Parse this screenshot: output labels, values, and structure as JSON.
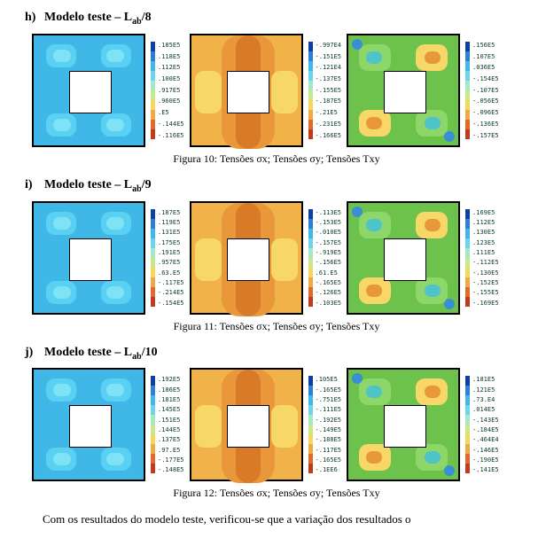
{
  "palette": {
    "lb_cyan": "#3fb8e8",
    "cyan2": "#5ad1f2",
    "cyan3": "#7fe2f5",
    "orange_bg": "#f2b24a",
    "orange_mid": "#e8983a",
    "orange_deep": "#d87a28",
    "yellow": "#f7d768",
    "green_bg": "#6cc24a",
    "green_mid": "#8dd66a",
    "green_cyan": "#4fc4c8",
    "blue_corner": "#3a8ed6"
  },
  "legend_colors": [
    "#0e3fa3",
    "#2d7fd6",
    "#3fb8e8",
    "#6cd4ec",
    "#a4e8c8",
    "#c8e88a",
    "#f2d95a",
    "#f0a948",
    "#e06a2c",
    "#c23a1e"
  ],
  "sections": [
    {
      "letter": "h)",
      "title_pre": "Modelo teste – L",
      "title_sub": "ab",
      "title_post": "/8",
      "caption": "Figura 10: Tensões σx; Tensões σy; Tensões Txy",
      "legends": [
        [
          ".185E5",
          ".118E5",
          ".112E5",
          ".100E5",
          ".917E5",
          ".960E5",
          ".E5",
          "-.144E5",
          "-.116E5"
        ],
        [
          "-.997E4",
          "-.151E5",
          "-.121E4",
          "-.137E5",
          "-.155E5",
          "-.187E5",
          "-.21E5",
          "-.231E5",
          "-.166E5"
        ],
        [
          ".156E5",
          ".107E5",
          ".036E5",
          "-.154E5",
          "-.107E5",
          "-.056E5",
          "-.096E5",
          "-.136E5",
          "-.157E5"
        ]
      ]
    },
    {
      "letter": "i)",
      "title_pre": "Modelo teste – L",
      "title_sub": "ab",
      "title_post": "/9",
      "caption": "Figura 11: Tensões σx; Tensões σy; Tensões Txy",
      "legends": [
        [
          ".187E5",
          ".119E5",
          ".131E5",
          ".175E5",
          ".191E5",
          ".957E5",
          ".63.E5",
          "-.117E5",
          "-.214E5",
          "-.154E5"
        ],
        [
          "-.113E5",
          "-.153E5",
          "-.010E5",
          "-.157E5",
          "-.919E5",
          "-.156E5",
          ".61.E5",
          "-.165E5",
          "-.126E5",
          "-.103E5"
        ],
        [
          ".169E5",
          ".112E5",
          ".130E5",
          ".123E5",
          ".111E5",
          "-.112E5",
          "-.130E5",
          "-.152E5",
          "-.155E5",
          "-.169E5"
        ]
      ]
    },
    {
      "letter": "j)",
      "title_pre": "Modelo teste – L",
      "title_sub": "ab",
      "title_post": "/10",
      "caption": "Figura 12: Tensões σx; Tensões σy; Tensões Txy",
      "legends": [
        [
          ".192E5",
          ".186E5",
          ".181E5",
          ".145E5",
          ".151E5",
          ".144E5",
          ".137E5",
          ".97.E5",
          "-.177E5",
          "-.148E5"
        ],
        [
          ".105E5",
          "-.165E5",
          "-.751E5",
          "-.111E5",
          "-.192E5",
          "-.149E5",
          "-.188E5",
          "-.117E5",
          "-.165E5",
          "-.1EE6"
        ],
        [
          ".181E5",
          ".121E5",
          ".73.E4",
          ".014E5",
          "-.143E5",
          "-.184E5",
          "-.464E4",
          "-.146E5",
          "-.190E5",
          "-.141E5"
        ]
      ]
    }
  ],
  "footer": "Com os resultados do modelo teste, verificou-se que a variação dos resultados o"
}
